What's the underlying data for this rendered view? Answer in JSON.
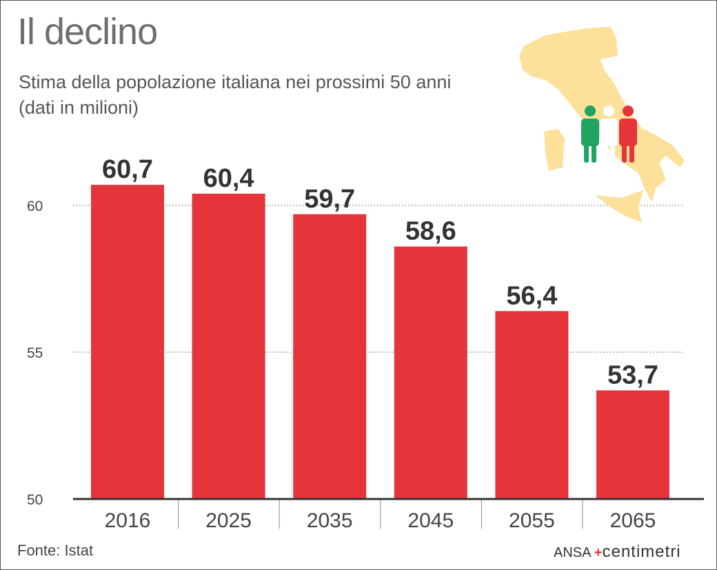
{
  "title": "Il declino",
  "subtitle_line1": "Stima della popolazione italiana nei prossimi 50 anni",
  "subtitle_line2": "(dati in milioni)",
  "source": "Fonte: Istat",
  "logo": {
    "ansa": "ANSA",
    "centimetri": "centimetri"
  },
  "colors": {
    "bar": "#e5343a",
    "map": "#fde09a",
    "green": "#1fa463",
    "red": "#e5343a"
  },
  "chart_data": {
    "type": "bar",
    "categories": [
      "2016",
      "2025",
      "2035",
      "2045",
      "2055",
      "2065"
    ],
    "values": [
      60.7,
      60.4,
      59.7,
      58.6,
      56.4,
      53.7
    ],
    "data_labels": [
      "60,7",
      "60,4",
      "59,7",
      "58,6",
      "56,4",
      "53,7"
    ],
    "yticks": [
      50,
      55,
      60
    ],
    "ylim": [
      50,
      62
    ],
    "grid": "dotted horizontal",
    "xlabel": "",
    "ylabel": ""
  }
}
